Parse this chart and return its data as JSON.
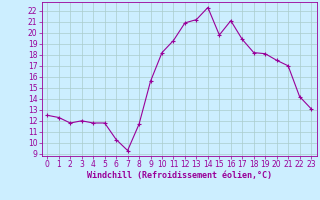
{
  "x": [
    0,
    1,
    2,
    3,
    4,
    5,
    6,
    7,
    8,
    9,
    10,
    11,
    12,
    13,
    14,
    15,
    16,
    17,
    18,
    19,
    20,
    21,
    22,
    23
  ],
  "y": [
    12.5,
    12.3,
    11.8,
    12.0,
    11.8,
    11.8,
    10.3,
    9.3,
    11.7,
    15.6,
    18.2,
    19.3,
    20.9,
    21.2,
    22.3,
    19.8,
    21.1,
    19.4,
    18.2,
    18.1,
    17.5,
    17.0,
    14.2,
    13.1
  ],
  "line_color": "#990099",
  "marker": "+",
  "marker_size": 3,
  "marker_linewidth": 0.8,
  "line_width": 0.8,
  "bg_color": "#cceeff",
  "grid_color": "#aacccc",
  "xlabel": "Windchill (Refroidissement éolien,°C)",
  "xlabel_fontsize": 6.0,
  "tick_fontsize": 5.5,
  "ylim": [
    8.8,
    22.8
  ],
  "xlim": [
    -0.5,
    23.5
  ],
  "yticks": [
    9,
    10,
    11,
    12,
    13,
    14,
    15,
    16,
    17,
    18,
    19,
    20,
    21,
    22
  ],
  "xticks": [
    0,
    1,
    2,
    3,
    4,
    5,
    6,
    7,
    8,
    9,
    10,
    11,
    12,
    13,
    14,
    15,
    16,
    17,
    18,
    19,
    20,
    21,
    22,
    23
  ]
}
